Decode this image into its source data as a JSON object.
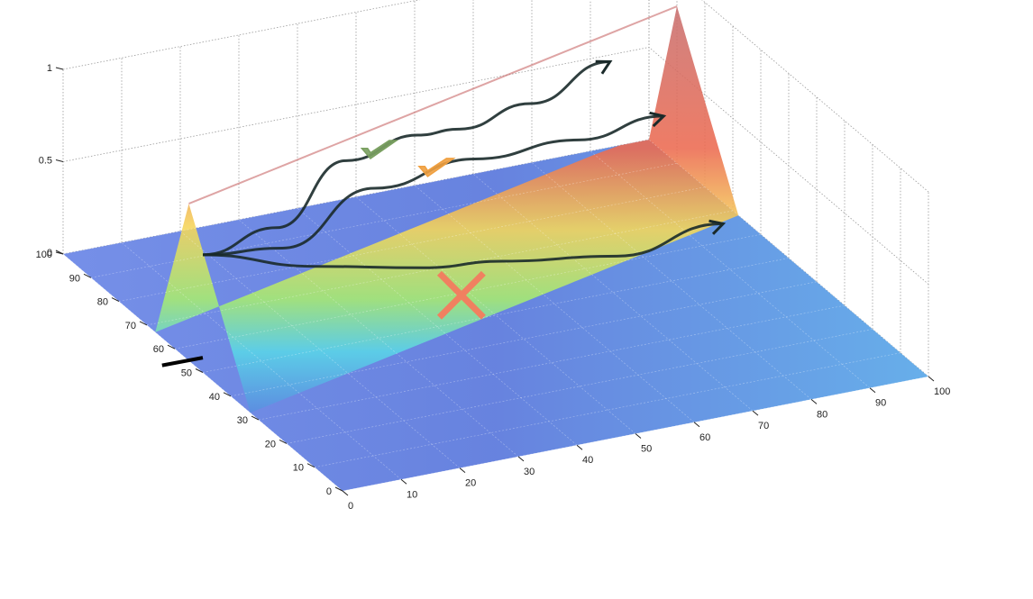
{
  "chart_data": {
    "type": "surface",
    "title": "",
    "xlabel": "",
    "ylabel": "",
    "zlabel": "",
    "xlim": [
      0,
      100
    ],
    "ylim": [
      0,
      100
    ],
    "zlim": [
      0,
      1
    ],
    "grid": true,
    "x_ticks": [
      "0",
      "10",
      "20",
      "30",
      "40",
      "50",
      "60",
      "70",
      "80",
      "90",
      "100"
    ],
    "y_ticks": [
      "0",
      "10",
      "20",
      "30",
      "40",
      "50",
      "60",
      "70",
      "80",
      "90",
      "100"
    ],
    "z_ticks": [
      "0",
      "0.5",
      "1"
    ],
    "colormap": [
      "#5a5fc8",
      "#5a9fe8",
      "#6fd6e8",
      "#b8f060",
      "#f5e85a",
      "#f5a050",
      "#e85050",
      "#c86060"
    ],
    "surface": {
      "description": "ridge of high values (~0.8-0.95) running along y from ~55 at x=0 to ~90 at x=100, low (~0.05) elsewhere with a slight rise near the far edge"
    },
    "paths": [
      {
        "x": [
          0,
          15,
          35,
          50,
          60,
          75,
          90
        ],
        "y": [
          50,
          55,
          72,
          78,
          84,
          90,
          93
        ],
        "result": "check",
        "color": "#7aa060"
      },
      {
        "x": [
          0,
          15,
          35,
          55,
          75,
          92
        ],
        "y": [
          50,
          53,
          62,
          68,
          73,
          78
        ],
        "result": "check",
        "color": "#f0a040"
      },
      {
        "x": [
          0,
          20,
          40,
          55,
          75,
          95
        ],
        "y": [
          50,
          52,
          55,
          58,
          59,
          63
        ],
        "result": "cross",
        "color": "#f08060"
      }
    ]
  }
}
